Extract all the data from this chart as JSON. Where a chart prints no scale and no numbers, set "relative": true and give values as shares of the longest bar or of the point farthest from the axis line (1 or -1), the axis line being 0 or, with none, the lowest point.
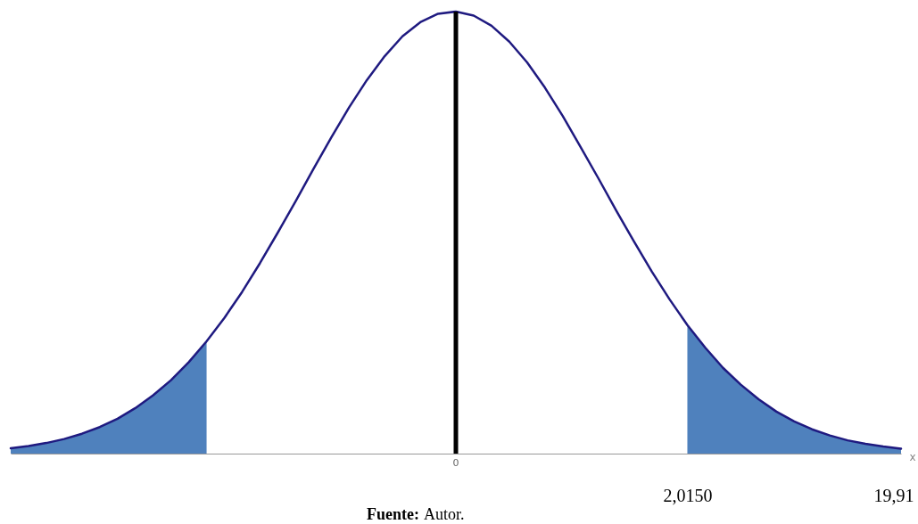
{
  "chart_data": {
    "type": "line",
    "relative": true,
    "xlabel": "x",
    "categories": [
      null,
      null,
      null,
      null,
      null,
      null,
      null,
      null,
      null,
      null,
      null,
      null,
      null,
      null,
      null,
      null,
      null,
      null,
      null,
      null,
      null,
      null,
      null,
      null,
      null,
      null,
      null,
      null,
      null,
      null,
      null,
      null,
      null,
      null,
      null,
      null,
      null,
      null,
      null,
      null,
      null,
      null,
      null,
      null,
      null,
      null,
      null,
      null,
      null,
      null,
      null
    ],
    "series": [
      {
        "type": "area",
        "color": "#4f81bd",
        "values": [
          0.012,
          0.017,
          0.024,
          0.033,
          0.045,
          0.06,
          0.079,
          0.103,
          0.132,
          0.166,
          0.207,
          0.254,
          null,
          null,
          null,
          null,
          null,
          null,
          null,
          null,
          null,
          null,
          null,
          null,
          null,
          null,
          null,
          null,
          null,
          null,
          null,
          null,
          null,
          null,
          null,
          null,
          null,
          null,
          0.291,
          0.24,
          0.194,
          0.156,
          0.123,
          0.095,
          0.073,
          0.055,
          0.041,
          0.03,
          0.022,
          0.016,
          0.011
        ]
      },
      {
        "color": "#1f1a80",
        "values": [
          0.012,
          0.017,
          0.024,
          0.033,
          0.045,
          0.06,
          0.079,
          0.103,
          0.132,
          0.166,
          0.207,
          0.254,
          0.307,
          0.366,
          0.431,
          0.5,
          0.571,
          0.644,
          0.715,
          0.783,
          0.845,
          0.899,
          0.944,
          0.976,
          0.995,
          1.0,
          0.991,
          0.968,
          0.932,
          0.885,
          0.828,
          0.764,
          0.694,
          0.623,
          0.55,
          0.48,
          0.412,
          0.349,
          0.291,
          0.24,
          0.194,
          0.156,
          0.123,
          0.095,
          0.073,
          0.055,
          0.041,
          0.03,
          0.022,
          0.016,
          0.011
        ]
      }
    ],
    "ref_lines": [
      {
        "axis": "x",
        "label": "0",
        "color": "#000000"
      }
    ],
    "annotations": [
      "2,0150",
      "19,91",
      "Fuente: Autor."
    ]
  }
}
